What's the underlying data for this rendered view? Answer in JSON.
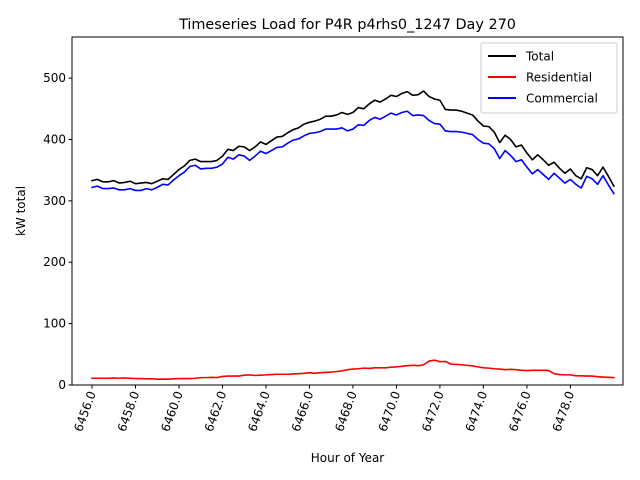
{
  "chart_data": {
    "type": "line",
    "title": "Timeseries Load for P4R p4rhs0_1247  Day 270",
    "xlabel": "Hour of Year",
    "ylabel": "kW total",
    "xlim": [
      6455.08,
      6480.42
    ],
    "ylim": [
      0,
      567
    ],
    "xticks": [
      6456,
      6458,
      6460,
      6462,
      6464,
      6466,
      6468,
      6470,
      6472,
      6474,
      6476,
      6478
    ],
    "xtick_labels": [
      "6456.0",
      "6458.0",
      "6460.0",
      "6462.0",
      "6464.0",
      "6466.0",
      "6468.0",
      "6470.0",
      "6472.0",
      "6474.0",
      "6476.0",
      "6478.0"
    ],
    "yticks": [
      0,
      100,
      200,
      300,
      400,
      500
    ],
    "ytick_labels": [
      "0",
      "100",
      "200",
      "300",
      "400",
      "500"
    ],
    "x_start": 6456.0,
    "x_step": 0.25,
    "legend_position": "upper-right",
    "series": [
      {
        "name": "Total",
        "color": "#000000",
        "values": [
          333,
          335,
          331,
          331,
          333,
          329,
          330,
          332,
          328,
          329,
          330,
          328,
          332,
          336,
          335,
          343,
          351,
          357,
          366,
          368,
          364,
          364,
          364,
          366,
          373,
          384,
          382,
          389,
          388,
          382,
          388,
          396,
          392,
          398,
          404,
          405,
          411,
          416,
          419,
          425,
          428,
          430,
          433,
          438,
          438,
          440,
          444,
          441,
          444,
          452,
          450,
          458,
          464,
          461,
          466,
          472,
          470,
          475,
          478,
          472,
          473,
          479,
          470,
          466,
          464,
          449,
          448,
          448,
          446,
          443,
          440,
          430,
          422,
          421,
          412,
          395,
          407,
          400,
          388,
          391,
          378,
          367,
          375,
          367,
          358,
          363,
          353,
          345,
          352,
          341,
          336,
          354,
          351,
          341,
          355,
          340,
          324
        ]
      },
      {
        "name": "Residential",
        "color": "#ff0000",
        "values": [
          11,
          11,
          11,
          11,
          11.5,
          11,
          11.5,
          11,
          10.5,
          10.5,
          10,
          10,
          9.5,
          9.5,
          9.5,
          10,
          10.5,
          10.5,
          10.5,
          11,
          12,
          12,
          12.5,
          12,
          14,
          14.5,
          14.5,
          14.5,
          16,
          16.5,
          15.5,
          16,
          16.5,
          17,
          17.5,
          17.5,
          17.5,
          18,
          18.5,
          19,
          20,
          19,
          20,
          20.5,
          21,
          22,
          23,
          25,
          26,
          26.5,
          27.5,
          27,
          28,
          28,
          28,
          29,
          29.5,
          30.5,
          31.5,
          32,
          31.5,
          33,
          39,
          40.5,
          38,
          38.5,
          34,
          33.5,
          33,
          32,
          31,
          29.5,
          28,
          27.5,
          26.5,
          26,
          25,
          25.5,
          25,
          24,
          23.5,
          24,
          24,
          24,
          23.5,
          18.5,
          17,
          16.5,
          16.5,
          15,
          15,
          14.5,
          14.5,
          13.5,
          13,
          12.5,
          12
        ]
      },
      {
        "name": "Commercial",
        "color": "#0000ff",
        "values": [
          322,
          324,
          320,
          320,
          321,
          318,
          318,
          320,
          317,
          317,
          320,
          318,
          322,
          327,
          326,
          334,
          341,
          347,
          356,
          358,
          352,
          353,
          353,
          355,
          360,
          371,
          368,
          375,
          373,
          366,
          373,
          381,
          377,
          382,
          387,
          388,
          394,
          399,
          401,
          406,
          410,
          411,
          413,
          417,
          417,
          417,
          419,
          414,
          417,
          424,
          423,
          431,
          436,
          433,
          438,
          443,
          440,
          444,
          446,
          439,
          440,
          439,
          431,
          426,
          425,
          414,
          413,
          413,
          412,
          410,
          408,
          400,
          394,
          393,
          385,
          369,
          382,
          374,
          364,
          367,
          355,
          344,
          351,
          343,
          335,
          345,
          337,
          329,
          335,
          327,
          321,
          340,
          336,
          327,
          341,
          326,
          312
        ]
      }
    ]
  }
}
